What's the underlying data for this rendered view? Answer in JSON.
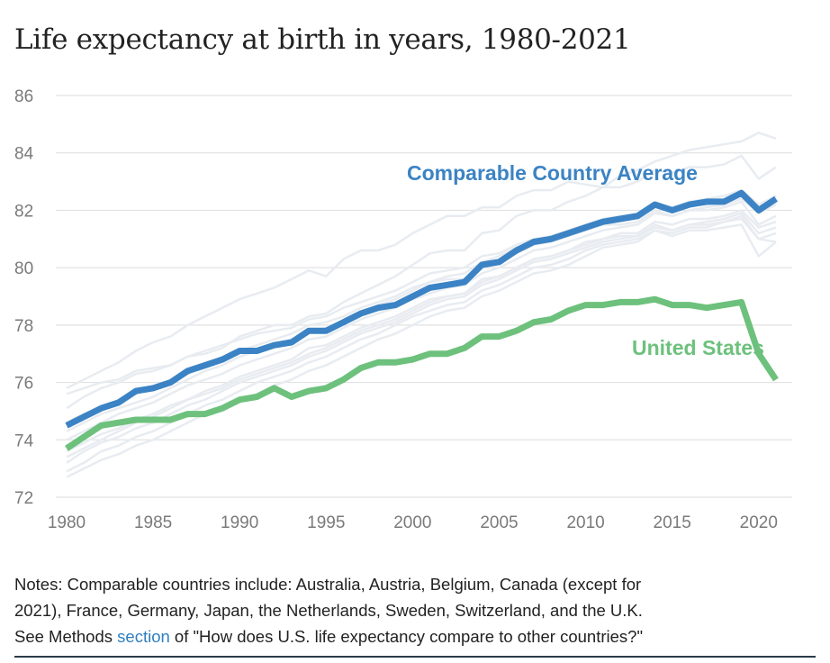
{
  "title": "Life expectancy at birth in years, 1980-2021",
  "colors": {
    "comparable": "#3b83c4",
    "us": "#6dc17c",
    "background_lines": "#e8ecf1",
    "grid": "#e2e2e2",
    "link": "#2f7fc1"
  },
  "notes": {
    "line1": "Notes: Comparable countries include: Australia, Austria, Belgium, Canada (except for",
    "line2": "2021), France, Germany, Japan, the Netherlands, Sweden, Switzerland, and the U.K.",
    "line3_before": "See Methods ",
    "link_text": "section",
    "line3_after": " of \"How does U.S. life expectancy compare to other countries?\""
  },
  "chart_data": {
    "type": "line",
    "title": "Life expectancy at birth in years, 1980-2021",
    "xlim": [
      1980,
      2021
    ],
    "ylim": [
      72,
      86
    ],
    "x_ticks": [
      "1980",
      "1985",
      "1990",
      "1995",
      "2000",
      "2005",
      "2010",
      "2015",
      "2020"
    ],
    "y_ticks": [
      "72",
      "74",
      "76",
      "78",
      "80",
      "82",
      "84",
      "86"
    ],
    "grid": "horizontal",
    "x": [
      1980,
      1981,
      1982,
      1983,
      1984,
      1985,
      1986,
      1987,
      1988,
      1989,
      1990,
      1991,
      1992,
      1993,
      1994,
      1995,
      1996,
      1997,
      1998,
      1999,
      2000,
      2001,
      2002,
      2003,
      2004,
      2005,
      2006,
      2007,
      2008,
      2009,
      2010,
      2011,
      2012,
      2013,
      2014,
      2015,
      2016,
      2017,
      2018,
      2019,
      2020,
      2021
    ],
    "series": [
      {
        "name": "Comparable Country Average",
        "color": "#3b83c4",
        "values": [
          74.5,
          74.8,
          75.1,
          75.3,
          75.7,
          75.8,
          76.0,
          76.4,
          76.6,
          76.8,
          77.1,
          77.1,
          77.3,
          77.4,
          77.8,
          77.8,
          78.1,
          78.4,
          78.6,
          78.7,
          79.0,
          79.3,
          79.4,
          79.5,
          80.1,
          80.2,
          80.6,
          80.9,
          81.0,
          81.2,
          81.4,
          81.6,
          81.7,
          81.8,
          82.2,
          82.0,
          82.2,
          82.3,
          82.3,
          82.6,
          82.0,
          82.4
        ]
      },
      {
        "name": "United States",
        "color": "#6dc17c",
        "values": [
          73.7,
          74.1,
          74.5,
          74.6,
          74.7,
          74.7,
          74.7,
          74.9,
          74.9,
          75.1,
          75.4,
          75.5,
          75.8,
          75.5,
          75.7,
          75.8,
          76.1,
          76.5,
          76.7,
          76.7,
          76.8,
          77.0,
          77.0,
          77.2,
          77.6,
          77.6,
          77.8,
          78.1,
          78.2,
          78.5,
          78.7,
          78.7,
          78.8,
          78.8,
          78.9,
          78.7,
          78.7,
          78.6,
          78.7,
          78.8,
          77.0,
          76.1
        ]
      }
    ],
    "background_series": [
      [
        75.8,
        76.1,
        76.4,
        76.7,
        77.1,
        77.4,
        77.6,
        78.0,
        78.3,
        78.6,
        78.9,
        79.1,
        79.3,
        79.6,
        79.9,
        79.7,
        80.3,
        80.6,
        80.6,
        80.8,
        81.2,
        81.5,
        81.8,
        81.8,
        82.1,
        82.1,
        82.5,
        82.7,
        82.7,
        83.0,
        82.9,
        82.8,
        83.2,
        83.4,
        83.7,
        83.9,
        84.1,
        84.2,
        84.3,
        84.4,
        84.7,
        84.5
      ],
      [
        75.1,
        75.5,
        75.8,
        76.0,
        76.3,
        76.4,
        76.6,
        76.9,
        77.0,
        77.2,
        77.6,
        77.8,
        78.0,
        78.0,
        78.3,
        78.4,
        78.8,
        79.1,
        79.4,
        79.7,
        80.1,
        80.5,
        80.6,
        80.6,
        81.2,
        81.3,
        81.8,
        82.0,
        82.0,
        82.3,
        82.5,
        82.8,
        82.8,
        83.0,
        83.4,
        83.3,
        83.5,
        83.5,
        83.6,
        83.9,
        83.1,
        83.5
      ],
      [
        74.6,
        74.9,
        75.1,
        75.4,
        75.6,
        75.8,
        76.0,
        76.3,
        76.6,
        76.8,
        77.1,
        77.3,
        77.5,
        77.7,
        78.0,
        78.1,
        78.3,
        78.6,
        78.8,
        79.0,
        79.3,
        79.5,
        79.7,
        79.8,
        80.2,
        80.4,
        80.7,
        80.9,
        81.0,
        81.2,
        81.5,
        81.6,
        81.8,
        81.9,
        82.2,
        82.1,
        82.3,
        82.4,
        82.5,
        82.7,
        82.2,
        82.5
      ],
      [
        74.0,
        74.3,
        74.6,
        74.9,
        75.1,
        75.3,
        75.6,
        75.9,
        76.1,
        76.3,
        76.6,
        76.8,
        77.0,
        77.2,
        77.5,
        77.6,
        77.9,
        78.2,
        78.4,
        78.6,
        78.9,
        79.1,
        79.3,
        79.4,
        79.8,
        80.0,
        80.3,
        80.6,
        80.7,
        80.9,
        81.1,
        81.3,
        81.4,
        81.5,
        81.9,
        81.8,
        82.0,
        82.1,
        82.2,
        82.4,
        81.9,
        82.2
      ],
      [
        73.4,
        73.7,
        74.0,
        74.3,
        74.6,
        74.8,
        75.1,
        75.4,
        75.7,
        75.9,
        76.2,
        76.4,
        76.6,
        76.8,
        77.2,
        77.3,
        77.6,
        77.9,
        78.1,
        78.3,
        78.6,
        78.9,
        79.0,
        79.1,
        79.6,
        79.7,
        80.0,
        80.3,
        80.4,
        80.6,
        80.9,
        81.0,
        81.2,
        81.2,
        81.6,
        81.5,
        81.7,
        81.7,
        81.8,
        82.0,
        81.4,
        81.6
      ],
      [
        72.9,
        73.2,
        73.6,
        73.8,
        74.1,
        74.3,
        74.6,
        74.9,
        75.2,
        75.4,
        75.7,
        76.0,
        76.2,
        76.4,
        76.7,
        76.9,
        77.2,
        77.5,
        77.7,
        78.0,
        78.3,
        78.5,
        78.7,
        78.8,
        79.2,
        79.4,
        79.7,
        80.0,
        80.1,
        80.3,
        80.6,
        80.8,
        80.9,
        81.0,
        81.3,
        81.2,
        81.4,
        81.4,
        81.6,
        81.7,
        81.0,
        81.2
      ],
      [
        72.7,
        73.0,
        73.3,
        73.5,
        73.8,
        74.0,
        74.3,
        74.6,
        74.9,
        75.1,
        75.4,
        75.6,
        75.9,
        76.1,
        76.4,
        76.6,
        76.9,
        77.2,
        77.5,
        77.7,
        78.0,
        78.3,
        78.5,
        78.6,
        79.0,
        79.2,
        79.5,
        79.8,
        79.9,
        80.1,
        80.4,
        80.7,
        80.8,
        80.9,
        81.3,
        81.1,
        81.3,
        81.3,
        81.4,
        81.5,
        80.4,
        80.9
      ],
      [
        75.6,
        75.8,
        76.0,
        76.1,
        76.4,
        76.5,
        76.6,
        76.9,
        77.1,
        77.3,
        77.5,
        77.7,
        77.8,
        77.9,
        78.2,
        78.3,
        78.6,
        78.8,
        79.0,
        79.2,
        79.5,
        79.8,
        79.9,
        80.0,
        80.4,
        80.5,
        80.8,
        81.0,
        81.1,
        81.3,
        81.5,
        81.7,
        81.8,
        81.8,
        82.1,
        82.0,
        82.2,
        82.2,
        82.3,
        82.4,
        82.0,
        82.3
      ],
      [
        74.3,
        74.6,
        74.9,
        75.1,
        75.3,
        75.5,
        75.8,
        76.1,
        76.4,
        76.6,
        76.9,
        77.1,
        77.3,
        77.5,
        77.8,
        77.9,
        78.1,
        78.4,
        78.7,
        78.9,
        79.2,
        79.5,
        79.6,
        79.6,
        80.1,
        80.2,
        80.5,
        80.8,
        80.9,
        81.1,
        81.3,
        81.5,
        81.5,
        81.6,
        82.0,
        81.8,
        82.0,
        82.0,
        82.1,
        82.3,
        81.5,
        81.8
      ],
      [
        73.2,
        73.6,
        73.9,
        74.1,
        74.4,
        74.6,
        74.9,
        75.2,
        75.4,
        75.7,
        76.0,
        76.2,
        76.4,
        76.6,
        76.9,
        77.1,
        77.4,
        77.7,
        77.9,
        78.1,
        78.4,
        78.7,
        78.9,
        79.0,
        79.4,
        79.6,
        79.9,
        80.2,
        80.3,
        80.5,
        80.7,
        80.9,
        81.0,
        81.1,
        81.4,
        81.3,
        81.5,
        81.6,
        81.7,
        81.9,
        81.2,
        81.4
      ],
      [
        73.6,
        73.9,
        74.2,
        74.4,
        74.7,
        74.9,
        75.2,
        75.4,
        75.6,
        75.8,
        76.1,
        76.3,
        76.5,
        76.7,
        77.0,
        77.2,
        77.5,
        77.8,
        78.0,
        78.2,
        78.5,
        78.8,
        79.0,
        79.1,
        79.5,
        79.7,
        80.0,
        80.3,
        80.4,
        80.6,
        80.8,
        81.0,
        81.1,
        81.1,
        81.5,
        81.3,
        81.5,
        81.5,
        81.6,
        81.8,
        81.0,
        80.9
      ]
    ]
  }
}
